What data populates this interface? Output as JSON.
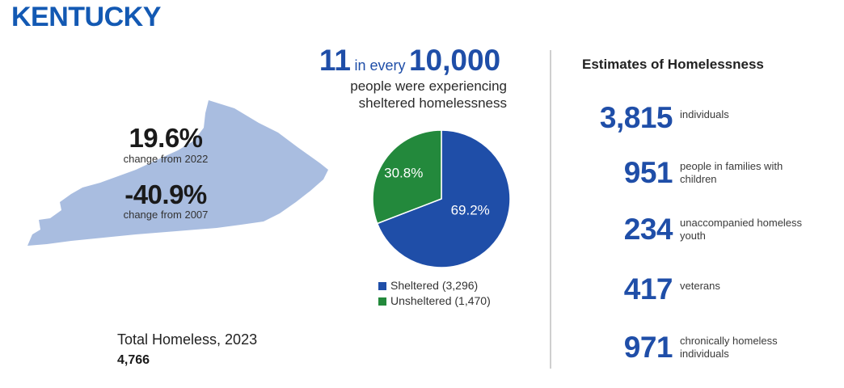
{
  "title": "KENTUCKY",
  "map": {
    "change_2022_value": "19.6%",
    "change_2022_label": "change from 2022",
    "change_2007_value": "-40.9%",
    "change_2007_label": "change from 2007"
  },
  "rate": {
    "count": "11",
    "connector": "in every",
    "base": "10,000",
    "line1": "people were experiencing",
    "line2": "sheltered homelessness"
  },
  "total": {
    "label": "Total Homeless, 2023",
    "value": "4,766"
  },
  "estimates": {
    "title": "Estimates of Homelessness",
    "items": [
      {
        "value": "3,815",
        "label": "individuals"
      },
      {
        "value": "951",
        "label": "people in families with children"
      },
      {
        "value": "234",
        "label": "unaccompanied homeless youth"
      },
      {
        "value": "417",
        "label": "veterans"
      },
      {
        "value": "971",
        "label": "chronically homeless individuals"
      }
    ]
  },
  "colors": {
    "brand_blue": "#1359b3",
    "sheltered": "#1f4ea8",
    "unsheltered": "#23893c",
    "map_fill": "#a9bde0"
  },
  "chart_data": {
    "type": "pie",
    "title": "",
    "categories": [
      "Sheltered",
      "Unsheltered"
    ],
    "values": [
      3296,
      1470
    ],
    "percent_labels": [
      "69.2%",
      "30.8%"
    ],
    "legend": [
      "Sheltered (3,296)",
      "Unsheltered (1,470)"
    ],
    "legend_position": "bottom"
  }
}
